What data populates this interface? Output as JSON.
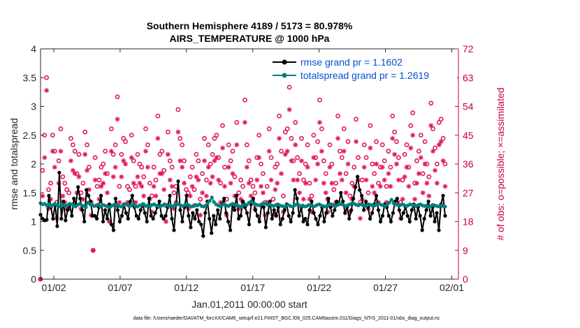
{
  "chart_data": {
    "type": "line",
    "title": "Southern Hemisphere 4189 / 5173 = 80.978%",
    "subtitle": "AIRS_TEMPERATURE @ 1000 hPa",
    "xlabel": "Jan.01,2011 00:00:00 start",
    "ylabel": "rmse and totalspread",
    "ylabel_right": "# of obs: o=possible; ×=assimilated",
    "footnote": "data file: /Users/raeder/DAI/ATM_forcXX/CAM6_setup/f.e21.FHIST_BGC.f09_025.CAM6assim.011/Diags_NTrS_2011-01/obs_diag_output.nc",
    "xlim": [
      0.5,
      32
    ],
    "ylim": [
      0,
      4
    ],
    "ylim_right": [
      0,
      72
    ],
    "x_ticks": [
      1.5,
      6.5,
      11.5,
      16.5,
      21.5,
      26.5,
      31.5
    ],
    "x_tick_labels": [
      "01/02",
      "01/07",
      "01/12",
      "01/17",
      "01/22",
      "01/27",
      "02/01"
    ],
    "y_tick_labels": [
      "0",
      "0.5",
      "1",
      "1.5",
      "2",
      "2.5",
      "3",
      "3.5",
      "4"
    ],
    "y_ticks_right": [
      "0",
      "9",
      "18",
      "27",
      "36",
      "45",
      "54",
      "63",
      "72"
    ],
    "legend_position": "top-right",
    "series": [
      {
        "name": "rmse grand pr = 1.1602",
        "color": "#000000",
        "axis": "left",
        "values": [
          1.12,
          1.05,
          1.02,
          1.03,
          1.45,
          1.25,
          1.05,
          1.3,
          0.92,
          1.85,
          1.05,
          1.35,
          1.02,
          1.2,
          1.3,
          1.1,
          1.4,
          1.3,
          1.6,
          1.4,
          1.2,
          1.0,
          1.55,
          1.45,
          1.35,
          1.1,
          1.1,
          1.05,
          1.25,
          1.45,
          1.0,
          1.2,
          1.05,
          1.3,
          0.95,
          0.85,
          1.4,
          1.2,
          1.0,
          1.1,
          1.3,
          1.15,
          1.05,
          1.35,
          1.45,
          1.25,
          1.1,
          1.05,
          1.2,
          1.3,
          1.15,
          1.0,
          1.4,
          1.1,
          1.05,
          1.15,
          1.25,
          1.35,
          1.1,
          1.05,
          1.1,
          1.25,
          1.45,
          1.05,
          0.85,
          1.3,
          1.7,
          1.2,
          1.0,
          1.25,
          1.45,
          1.1,
          0.9,
          1.15,
          1.05,
          1.2,
          1.0,
          0.95,
          0.75,
          1.15,
          1.35,
          1.05,
          0.8,
          1.1,
          0.95,
          1.2,
          1.05,
          1.3,
          1.4,
          1.15,
          1.0,
          0.85,
          1.3,
          1.2,
          1.45,
          1.05,
          1.1,
          1.35,
          1.25,
          1.15,
          0.95,
          1.3,
          1.4,
          1.2,
          1.1,
          1.0,
          1.3,
          1.25,
          0.9,
          1.15,
          1.35,
          1.05,
          1.2,
          1.1,
          1.25,
          0.95,
          1.05,
          1.2,
          1.3,
          1.1,
          1.0,
          1.15,
          1.55,
          1.4,
          1.1,
          1.25,
          1.0,
          1.05,
          0.95,
          1.2,
          1.35,
          1.15,
          1.05,
          0.95,
          1.1,
          1.25,
          1.0,
          1.15,
          1.4,
          1.25,
          1.1,
          1.2,
          1.35,
          1.3,
          1.5,
          1.35,
          1.15,
          1.25,
          1.05,
          1.2,
          1.4,
          1.6,
          1.78,
          1.55,
          1.45,
          1.2,
          1.35,
          1.25,
          1.05,
          1.15,
          1.3,
          1.45,
          1.2,
          1.0,
          1.1,
          1.3,
          1.25,
          1.1,
          1.0,
          1.15,
          1.35,
          1.4,
          1.2,
          1.05,
          1.15,
          1.25,
          1.1,
          1.0,
          1.2,
          1.3,
          1.05,
          1.25,
          1.1,
          0.85,
          1.05,
          1.2,
          1.35,
          1.1,
          1.25,
          1.0,
          1.15,
          0.85,
          1.3,
          1.45,
          1.1
        ]
      },
      {
        "name": "totalspread grand pr = 1.2619",
        "color": "#008080",
        "axis": "left",
        "values": [
          1.32,
          1.3,
          1.31,
          1.28,
          1.3,
          1.27,
          1.29,
          1.31,
          1.28,
          1.26,
          1.3,
          1.29,
          1.27,
          1.28,
          1.31,
          1.3,
          1.28,
          1.26,
          1.29,
          1.31,
          1.28,
          1.27,
          1.25,
          1.33,
          1.3,
          1.29,
          1.27,
          1.28,
          1.3,
          1.26,
          1.29,
          1.28,
          1.27,
          1.25,
          1.26,
          1.28,
          1.3,
          1.29,
          1.27,
          1.26,
          1.28,
          1.3,
          1.29,
          1.27,
          1.28,
          1.31,
          1.27,
          1.26,
          1.28,
          1.29,
          1.3,
          1.27,
          1.28,
          1.26,
          1.29,
          1.3,
          1.28,
          1.27,
          1.26,
          1.28,
          1.3,
          1.29,
          1.27,
          1.28,
          1.26,
          1.29,
          1.31,
          1.3,
          1.28,
          1.27,
          1.29,
          1.3,
          1.28,
          1.26,
          1.27,
          1.29,
          1.28,
          1.3,
          1.27,
          1.26,
          1.28,
          1.32,
          1.36,
          1.42,
          1.34,
          1.3,
          1.28,
          1.27,
          1.29,
          1.3,
          1.28,
          1.27,
          1.29,
          1.31,
          1.3,
          1.28,
          1.27,
          1.26,
          1.28,
          1.3,
          1.29,
          1.33,
          1.35,
          1.32,
          1.3,
          1.29,
          1.28,
          1.3,
          1.32,
          1.31,
          1.29,
          1.3,
          1.28,
          1.27,
          1.29,
          1.3,
          1.28,
          1.27,
          1.26,
          1.28,
          1.29,
          1.27,
          1.26,
          1.28,
          1.3,
          1.29,
          1.27,
          1.28,
          1.26,
          1.27,
          1.29,
          1.28,
          1.26,
          1.27,
          1.29,
          1.3,
          1.28,
          1.27,
          1.26,
          1.28,
          1.29,
          1.3,
          1.28,
          1.27,
          1.29,
          1.31,
          1.3,
          1.28,
          1.27,
          1.29,
          1.3,
          1.32,
          1.31,
          1.29,
          1.28,
          1.3,
          1.29,
          1.27,
          1.28,
          1.3,
          1.29,
          1.27,
          1.28,
          1.3,
          1.31,
          1.29,
          1.28,
          1.27,
          1.3,
          1.33,
          1.38,
          1.32,
          1.3,
          1.29,
          1.28,
          1.3,
          1.29,
          1.27,
          1.28,
          1.3,
          1.29,
          1.28,
          1.27,
          1.29,
          1.3,
          1.28,
          1.27,
          1.28,
          1.26,
          1.27,
          1.29,
          1.28,
          1.27,
          1.26,
          1.28,
          1.27,
          1.26
        ]
      },
      {
        "name": "obs possible",
        "color": "#e0195a",
        "axis": "right",
        "marker": "o",
        "values": [
          0,
          34,
          45,
          63,
          28,
          30,
          45,
          40,
          24,
          37,
          47,
          32,
          30,
          28,
          27,
          44,
          42,
          40,
          33,
          39,
          27,
          30,
          46,
          42,
          35,
          24,
          9,
          38,
          29,
          31,
          35,
          36,
          40,
          33,
          23,
          47,
          39,
          42,
          57,
          29,
          39,
          44,
          43,
          29,
          28,
          45,
          37,
          29,
          39,
          36,
          35,
          32,
          47,
          42,
          30,
          26,
          35,
          31,
          51,
          39,
          40,
          34,
          23,
          46,
          37,
          35,
          27,
          29,
          53,
          44,
          42,
          37,
          28,
          27,
          32,
          35,
          28,
          39,
          37,
          25,
          33,
          44,
          31,
          42,
          36,
          39,
          44,
          45,
          38,
          30,
          48,
          35,
          25,
          42,
          37,
          40,
          32,
          49,
          27,
          31,
          29,
          56,
          42,
          37,
          31,
          29,
          27,
          38,
          45,
          36,
          33,
          24,
          29,
          47,
          38,
          25,
          35,
          36,
          51,
          40,
          26,
          46,
          47,
          60,
          44,
          37,
          49,
          38,
          33,
          44,
          31,
          36,
          42,
          30,
          26,
          45,
          38,
          43,
          56,
          47,
          37,
          33,
          25,
          42,
          36,
          28,
          30,
          51,
          40,
          38,
          47,
          33,
          43,
          26,
          30,
          35,
          50,
          38,
          24,
          31,
          42,
          38,
          27,
          48,
          36,
          33,
          43,
          30,
          35,
          42,
          37,
          29,
          40,
          35,
          51,
          46,
          43,
          38,
          24,
          31,
          39,
          42,
          35,
          48,
          52,
          30,
          37,
          40,
          45,
          33,
          43,
          36,
          32,
          55,
          47,
          41,
          36,
          49,
          50,
          44,
          36
        ]
      },
      {
        "name": "obs assimilated",
        "color": "#e0195a",
        "axis": "right",
        "marker": "*",
        "values": [
          0,
          26,
          38,
          59,
          22,
          25,
          40,
          35,
          19,
          30,
          40,
          26,
          24,
          22,
          22,
          37,
          34,
          33,
          27,
          32,
          22,
          25,
          39,
          34,
          28,
          20,
          9,
          31,
          23,
          25,
          29,
          30,
          33,
          27,
          18,
          40,
          32,
          35,
          50,
          24,
          32,
          37,
          36,
          24,
          23,
          38,
          30,
          24,
          32,
          30,
          29,
          26,
          40,
          35,
          25,
          21,
          29,
          26,
          44,
          33,
          33,
          28,
          18,
          39,
          31,
          29,
          22,
          24,
          46,
          37,
          35,
          30,
          23,
          22,
          26,
          29,
          23,
          32,
          31,
          20,
          27,
          37,
          26,
          35,
          30,
          32,
          37,
          38,
          31,
          24,
          41,
          29,
          20,
          35,
          30,
          33,
          26,
          42,
          22,
          25,
          24,
          49,
          35,
          30,
          26,
          24,
          22,
          31,
          38,
          29,
          27,
          20,
          24,
          40,
          31,
          20,
          28,
          30,
          44,
          33,
          21,
          39,
          40,
          53,
          37,
          31,
          42,
          31,
          27,
          37,
          25,
          30,
          35,
          25,
          21,
          38,
          31,
          36,
          49,
          40,
          30,
          27,
          21,
          35,
          30,
          23,
          24,
          44,
          33,
          31,
          40,
          27,
          36,
          21,
          25,
          29,
          43,
          31,
          19,
          25,
          35,
          31,
          22,
          41,
          29,
          27,
          36,
          24,
          29,
          35,
          31,
          24,
          33,
          29,
          44,
          39,
          36,
          31,
          19,
          25,
          32,
          35,
          29,
          41,
          45,
          25,
          30,
          33,
          38,
          27,
          36,
          30,
          26,
          48,
          40,
          34,
          30,
          42,
          43,
          37,
          29
        ]
      }
    ]
  }
}
